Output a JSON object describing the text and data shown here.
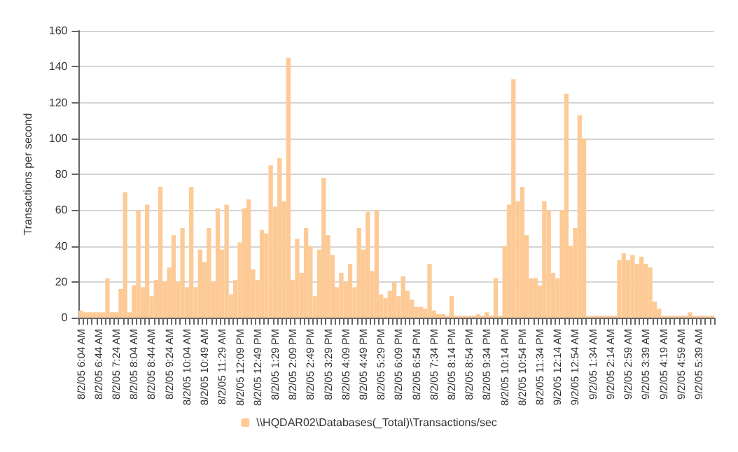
{
  "chart_data": {
    "type": "bar",
    "ylabel": "Transactions per second",
    "categories": [
      "8/2/05 6:04 AM",
      null,
      null,
      null,
      "8/2/05 6:44 AM",
      null,
      null,
      null,
      "8/2/05 7:24 AM",
      null,
      null,
      null,
      "8/2/05 8:04 AM",
      null,
      null,
      null,
      "8/2/05 8:44 AM",
      null,
      null,
      null,
      "8/2/05 9:24 AM",
      null,
      null,
      null,
      "8/2/05 10:04 AM",
      null,
      null,
      null,
      "8/2/05 10:49 AM",
      null,
      null,
      null,
      "8/2/05 11:29 AM",
      null,
      null,
      null,
      "8/2/05 12:09 PM",
      null,
      null,
      null,
      "8/2/05 12:49 PM",
      null,
      null,
      null,
      "8/2/05 1:29 PM",
      null,
      null,
      null,
      "8/2/05 2:09 PM",
      null,
      null,
      null,
      "8/2/05 2:49 PM",
      null,
      null,
      null,
      "8/2/05 3:29 PM",
      null,
      null,
      null,
      "8/2/05 4:09 PM",
      null,
      null,
      null,
      "8/2/05 4:49 PM",
      null,
      null,
      null,
      "8/2/05 5:29 PM",
      null,
      null,
      null,
      "8/2/05 6:09 PM",
      null,
      null,
      null,
      "8/2/05 6:54 PM",
      null,
      null,
      null,
      "8/2/05 7:34 PM",
      null,
      null,
      null,
      "8/2/05 8:14 PM",
      null,
      null,
      null,
      "8/2/05 8:54 PM",
      null,
      null,
      null,
      "8/2/05 9:34 PM",
      null,
      null,
      null,
      "8/2/05 10:14 PM",
      null,
      null,
      null,
      "8/2/05 10:54 PM",
      null,
      null,
      null,
      "8/2/05 11:34 PM",
      null,
      null,
      null,
      "9/2/05 12:14 AM",
      null,
      null,
      null,
      "9/2/05 12:54 AM",
      null,
      null,
      null,
      "9/2/05 1:34 AM",
      null,
      null,
      null,
      "9/2/05 2:14 AM",
      null,
      null,
      null,
      "9/2/05 2:59 AM",
      null,
      null,
      null,
      "9/2/05 3:39 AM",
      null,
      null,
      null,
      "9/2/05 4:19 AM",
      null,
      null,
      null,
      "9/2/05 4:59 AM",
      null,
      null,
      null,
      "9/2/05 5:39 AM",
      null,
      null,
      null
    ],
    "series": [
      {
        "name": "\\\\HQDAR02\\Databases(_Total)\\Transactions/sec",
        "color": "#fdca96",
        "values": [
          4,
          3,
          3,
          3,
          3,
          3,
          22,
          3,
          3,
          16,
          70,
          3,
          18,
          60,
          17,
          63,
          12,
          21,
          73,
          20,
          28,
          46,
          20,
          50,
          17,
          73,
          17,
          38,
          31,
          50,
          20,
          61,
          38,
          63,
          13,
          21,
          42,
          61,
          66,
          27,
          21,
          49,
          47,
          85,
          62,
          89,
          65,
          145,
          21,
          44,
          25,
          50,
          40,
          12,
          38,
          78,
          46,
          35,
          17,
          25,
          20,
          30,
          17,
          50,
          38,
          59,
          26,
          60,
          13,
          11,
          15,
          20,
          12,
          23,
          15,
          10,
          6,
          6,
          5,
          30,
          4,
          2,
          2,
          1,
          12,
          1,
          1,
          1,
          1,
          1,
          2,
          1,
          3,
          1,
          22,
          1,
          40,
          63,
          133,
          65,
          73,
          46,
          22,
          22,
          18,
          65,
          60,
          25,
          22,
          60,
          125,
          40,
          50,
          113,
          100,
          1,
          1,
          1,
          1,
          1,
          1,
          1,
          32,
          36,
          32,
          35,
          30,
          34,
          30,
          28,
          9,
          5,
          1,
          1,
          1,
          1,
          1,
          1,
          3,
          1,
          1,
          1,
          1,
          1
        ]
      }
    ],
    "ylim": [
      0,
      160
    ],
    "yticks": [
      0,
      20,
      40,
      60,
      80,
      100,
      120,
      140,
      160
    ],
    "grid": "y",
    "legend": "bottom"
  }
}
